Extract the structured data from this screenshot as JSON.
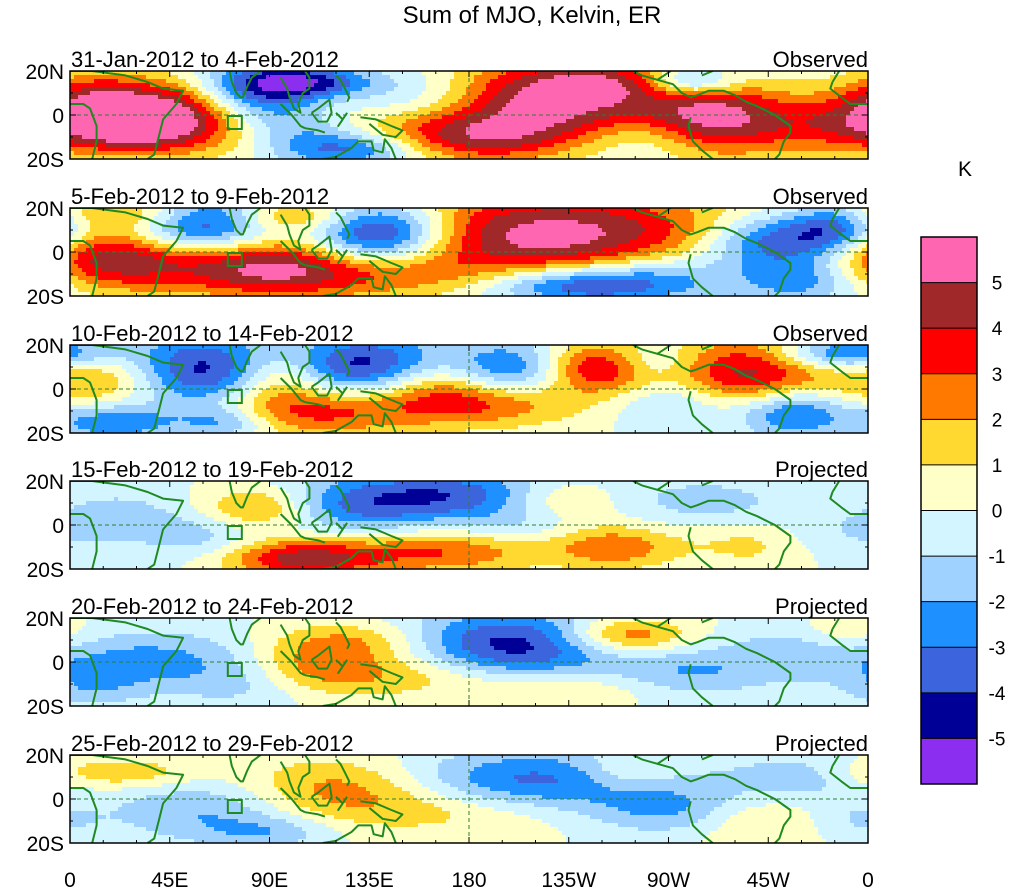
{
  "chart_data": {
    "type": "heatmap",
    "title": "Sum of MJO, Kelvin, ER",
    "colorbar": {
      "unit_label": "K",
      "levels": [
        "5",
        "4",
        "3",
        "2",
        "1",
        "0",
        "-1",
        "-2",
        "-3",
        "-4",
        "-5"
      ],
      "colors": [
        "#ff66b2",
        "#a02828",
        "#ff0000",
        "#ff7800",
        "#ffd830",
        "#ffffc8",
        "#d2f5ff",
        "#a0d2ff",
        "#1e90ff",
        "#3c64dc",
        "#000096",
        "#8c2eef"
      ]
    },
    "x_ticks": [
      "0",
      "45E",
      "90E",
      "135E",
      "180",
      "135W",
      "90W",
      "45W",
      "0"
    ],
    "y_ticks": [
      "20N",
      "0",
      "20S"
    ],
    "xlim_deg_east": [
      0,
      360
    ],
    "ylim_deg": [
      -20,
      20
    ],
    "panels": [
      {
        "period": "31-Jan-2012 to 4-Feb-2012",
        "status": "Observed",
        "blobs": [
          [
            45,
            0,
            40,
            12,
            4.8
          ],
          [
            25,
            -3,
            22,
            8,
            4.5
          ],
          [
            85,
            10,
            20,
            10,
            -5.5
          ],
          [
            215,
            5,
            45,
            14,
            5.5
          ],
          [
            175,
            -10,
            40,
            8,
            3.5
          ],
          [
            290,
            -2,
            20,
            12,
            4.5
          ],
          [
            125,
            -15,
            25,
            6,
            -4.5
          ],
          [
            330,
            -5,
            25,
            10,
            2.5
          ],
          [
            10,
            10,
            15,
            8,
            1.5
          ],
          [
            100,
            -5,
            20,
            6,
            -2
          ],
          [
            255,
            -10,
            35,
            8,
            -2
          ],
          [
            160,
            8,
            25,
            10,
            -2.5
          ],
          [
            110,
            15,
            20,
            5,
            -3.5
          ],
          [
            280,
            15,
            15,
            5,
            -4
          ],
          [
            240,
            15,
            25,
            6,
            2
          ]
        ]
      },
      {
        "period": "5-Feb-2012 to 9-Feb-2012",
        "status": "Observed",
        "blobs": [
          [
            220,
            8,
            55,
            14,
            5.5
          ],
          [
            140,
            8,
            22,
            10,
            -6
          ],
          [
            60,
            12,
            22,
            10,
            -5
          ],
          [
            20,
            -3,
            28,
            10,
            4.5
          ],
          [
            85,
            -5,
            28,
            10,
            3.5
          ],
          [
            120,
            -10,
            45,
            8,
            3
          ],
          [
            230,
            -15,
            30,
            6,
            -4.5
          ],
          [
            315,
            5,
            20,
            8,
            -4
          ],
          [
            345,
            10,
            15,
            8,
            -4
          ],
          [
            270,
            -10,
            25,
            8,
            -2
          ],
          [
            330,
            -12,
            20,
            8,
            -3
          ],
          [
            30,
            18,
            25,
            5,
            2.5
          ],
          [
            100,
            16,
            20,
            5,
            2.5
          ]
        ]
      },
      {
        "period": "10-Feb-2012 to 14-Feb-2012",
        "status": "Observed",
        "blobs": [
          [
            55,
            8,
            25,
            12,
            -5
          ],
          [
            135,
            10,
            25,
            10,
            -5
          ],
          [
            200,
            7,
            20,
            10,
            -4
          ],
          [
            240,
            10,
            20,
            8,
            5
          ],
          [
            305,
            6,
            25,
            12,
            4.5
          ],
          [
            110,
            -10,
            35,
            8,
            3.5
          ],
          [
            190,
            -5,
            30,
            8,
            4
          ],
          [
            20,
            5,
            25,
            10,
            3
          ],
          [
            95,
            5,
            15,
            8,
            2.5
          ],
          [
            160,
            5,
            20,
            8,
            2
          ],
          [
            325,
            -10,
            18,
            8,
            -4
          ],
          [
            350,
            16,
            20,
            5,
            -4
          ],
          [
            20,
            -15,
            20,
            6,
            -3
          ],
          [
            70,
            -15,
            15,
            5,
            -2.5
          ],
          [
            275,
            -5,
            20,
            8,
            -2
          ],
          [
            260,
            12,
            15,
            6,
            -2.5
          ]
        ]
      },
      {
        "period": "15-Feb-2012 to 19-Feb-2012",
        "status": "Projected",
        "blobs": [
          [
            170,
            14,
            45,
            8,
            -3.8
          ],
          [
            105,
            -15,
            25,
            6,
            4.5
          ],
          [
            170,
            -12,
            30,
            7,
            3
          ],
          [
            85,
            8,
            18,
            7,
            2.8
          ],
          [
            220,
            12,
            20,
            7,
            2.5
          ],
          [
            245,
            -10,
            20,
            7,
            2.8
          ],
          [
            310,
            -8,
            20,
            8,
            1.5
          ],
          [
            130,
            5,
            25,
            8,
            -2
          ],
          [
            60,
            -5,
            20,
            8,
            -1.5
          ],
          [
            20,
            5,
            20,
            8,
            -1.2
          ],
          [
            290,
            10,
            25,
            8,
            -1.5
          ],
          [
            340,
            -5,
            25,
            8,
            -1
          ],
          [
            200,
            0,
            20,
            6,
            -1
          ]
        ]
      },
      {
        "period": "20-Feb-2012 to 24-Feb-2012",
        "status": "Projected",
        "blobs": [
          [
            200,
            6,
            35,
            12,
            -4.8
          ],
          [
            250,
            12,
            20,
            6,
            3.5
          ],
          [
            150,
            -5,
            45,
            8,
            2.5
          ],
          [
            130,
            10,
            25,
            6,
            2
          ],
          [
            110,
            0,
            20,
            8,
            1.5
          ],
          [
            40,
            0,
            35,
            10,
            -2.5
          ],
          [
            80,
            -10,
            20,
            8,
            -1.2
          ],
          [
            280,
            -5,
            25,
            8,
            -2
          ],
          [
            330,
            5,
            25,
            8,
            -1.5
          ],
          [
            220,
            -12,
            30,
            6,
            1.5
          ],
          [
            350,
            12,
            15,
            6,
            1.5
          ],
          [
            10,
            -12,
            15,
            6,
            -1.2
          ]
        ]
      },
      {
        "period": "25-Feb-2012 to 29-Feb-2012",
        "status": "Projected",
        "blobs": [
          [
            210,
            8,
            40,
            10,
            -3.5
          ],
          [
            120,
            5,
            30,
            10,
            2.5
          ],
          [
            60,
            -5,
            30,
            10,
            -2.2
          ],
          [
            170,
            -5,
            40,
            8,
            1.5
          ],
          [
            270,
            -5,
            25,
            8,
            -2
          ],
          [
            310,
            -10,
            20,
            8,
            1.5
          ],
          [
            330,
            10,
            25,
            8,
            -1.5
          ],
          [
            20,
            12,
            25,
            5,
            2
          ],
          [
            250,
            12,
            15,
            6,
            1.5
          ],
          [
            90,
            -15,
            20,
            5,
            -1.5
          ],
          [
            355,
            -10,
            15,
            6,
            -1
          ]
        ]
      }
    ]
  }
}
